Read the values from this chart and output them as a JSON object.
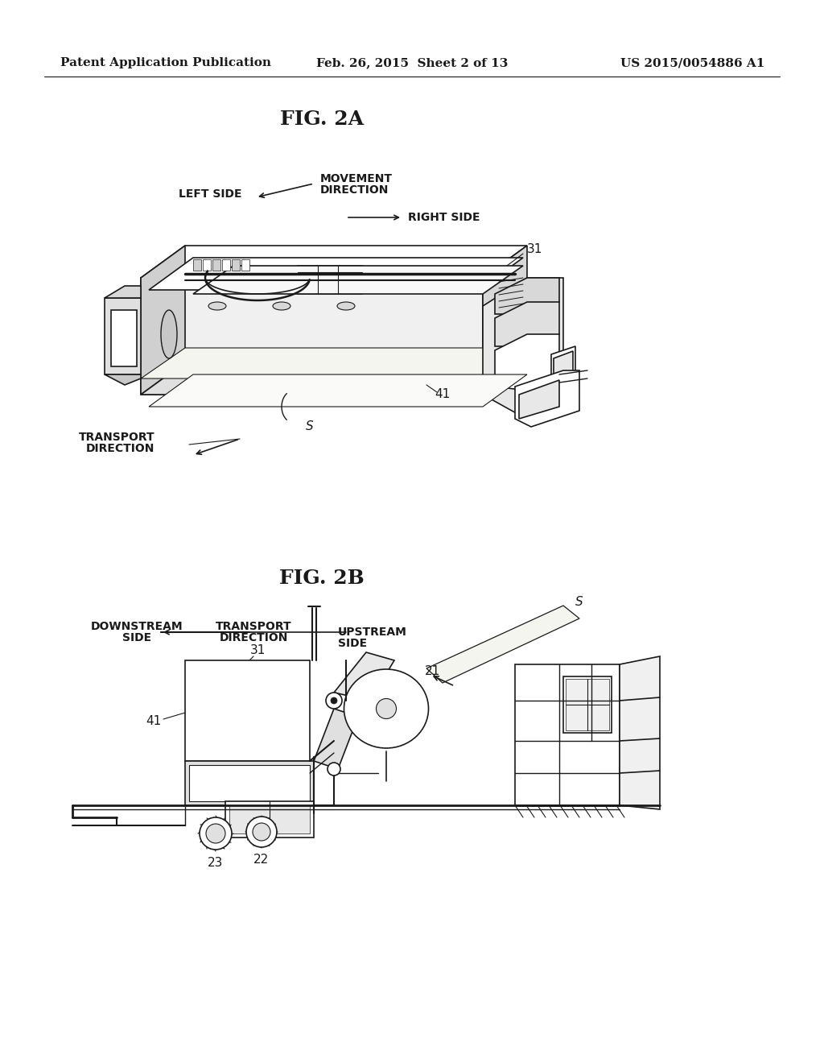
{
  "bg_color": "#ffffff",
  "lc": "#1a1a1a",
  "lw": 1.2,
  "header_left": "Patent Application Publication",
  "header_center": "Feb. 26, 2015  Sheet 2 of 13",
  "header_right": "US 2015/0054886 A1",
  "fig2a_title": "FIG. 2A",
  "fig2b_title": "FIG. 2B"
}
